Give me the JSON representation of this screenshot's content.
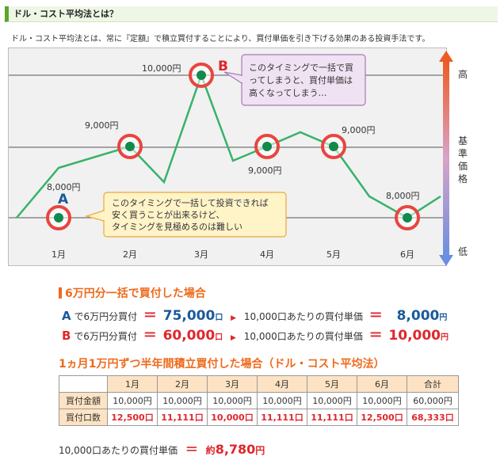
{
  "header": {
    "title": "ドル・コスト平均法とは？"
  },
  "intro": "ドル・コスト平均法とは、常に『定額』で積立買付することにより、買付単価を引き下げる効果のある投資手法です。",
  "chart": {
    "months": [
      "1月",
      "2月",
      "3月",
      "4月",
      "5月",
      "6月"
    ],
    "price_labels": [
      "8,000円",
      "9,000円",
      "10,000円",
      "9,000円",
      "9,000円",
      "8,000円"
    ],
    "marker_A": "A",
    "marker_B": "B",
    "scale_high": "高",
    "scale_mid": [
      "基",
      "準",
      "価",
      "格"
    ],
    "scale_low": "低",
    "callout_B": [
      "このタイミングで一括で買",
      "ってしまうと、買付単価は",
      "高くなってしまう…"
    ],
    "callout_A": [
      "このタイミングで一括して投資できれば",
      "安く買うことが出来るけど、",
      "タイミングを見極めるのは難しい"
    ],
    "colors": {
      "line": "#37b26a",
      "dot": "#118a4c",
      "ring": "#e8453f",
      "callout_B_bg": "#efe2f2",
      "callout_A_bg": "#fff3c8"
    }
  },
  "chart_data": {
    "type": "line",
    "x": [
      "1月",
      "",
      "2月",
      "",
      "3月",
      "",
      "4月",
      "",
      "5月",
      "",
      "6月",
      ""
    ],
    "values": [
      8000,
      8700,
      9000,
      8500,
      10000,
      8800,
      9000,
      9200,
      9000,
      8300,
      8000,
      8300
    ],
    "points": [
      {
        "month": "1月",
        "value": 8000,
        "label": "8,000円",
        "marker": "A"
      },
      {
        "month": "2月",
        "value": 9000,
        "label": "9,000円"
      },
      {
        "month": "3月",
        "value": 10000,
        "label": "10,000円",
        "marker": "B"
      },
      {
        "month": "4月",
        "value": 9000,
        "label": "9,000円"
      },
      {
        "month": "5月",
        "value": 9000,
        "label": "9,000円"
      },
      {
        "month": "6月",
        "value": 8000,
        "label": "8,000円"
      }
    ],
    "ylabel": "基準価格",
    "ylim": [
      7800,
      10300
    ],
    "grid": true
  },
  "lump": {
    "title": "6万円分一括で買付した場合",
    "rows": [
      {
        "key": "A",
        "text1": "で6万円分買付",
        "eq": "＝",
        "amount": "75,000",
        "amount_unit": "口",
        "text2": "10,000口あたりの買付単価",
        "eq2": "＝",
        "price": "8,000",
        "price_unit": "円"
      },
      {
        "key": "B",
        "text1": "で6万円分買付",
        "eq": "＝",
        "amount": "60,000",
        "amount_unit": "口",
        "text2": "10,000口あたりの買付単価",
        "eq2": "＝",
        "price": "10,000",
        "price_unit": "円"
      }
    ]
  },
  "dca": {
    "title": "1ヵ月1万円ずつ半年間積立買付した場合（ドル・コスト平均法）",
    "headers": [
      "1月",
      "2月",
      "3月",
      "4月",
      "5月",
      "6月",
      "合計"
    ],
    "row_amount": {
      "label": "買付金額",
      "values": [
        "10,000円",
        "10,000円",
        "10,000円",
        "10,000円",
        "10,000円",
        "10,000円",
        "60,000円"
      ]
    },
    "row_units": {
      "label": "買付口数",
      "values": [
        "12,500口",
        "11,111口",
        "10,000口",
        "11,111口",
        "11,111口",
        "12,500口",
        "68,333口"
      ]
    }
  },
  "avg": {
    "label": "10,000口あたりの買付単価",
    "eq": "＝",
    "prefix": "約",
    "value": "8,780",
    "unit": "円"
  }
}
